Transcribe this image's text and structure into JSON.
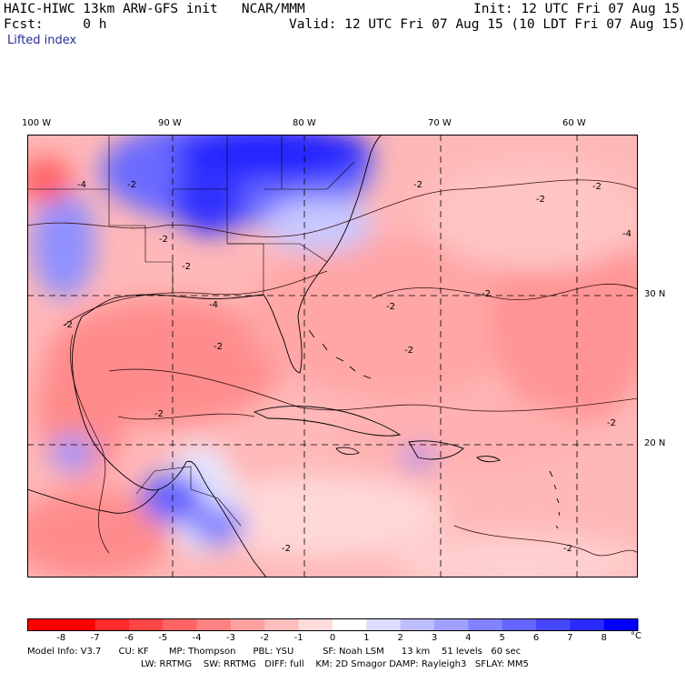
{
  "header": {
    "title": "HAIC-HIWC 13km ARW-GFS init   NCAR/MMM",
    "init": "Init: 12 UTC Fri 07 Aug 15",
    "fcst": "Fcst:     0 h",
    "valid": "Valid: 12 UTC Fri 07 Aug 15 (10 LDT Fri 07 Aug 15)",
    "field": "Lifted index"
  },
  "map": {
    "lon_labels": [
      "100 W",
      "90 W",
      "80 W",
      "70 W",
      "60 W"
    ],
    "lat_labels": [
      "30 N",
      "20 N"
    ],
    "contour_labels": [
      "-2",
      "-4"
    ]
  },
  "colorbar": {
    "ticks": [
      "-8",
      "-7",
      "-6",
      "-5",
      "-4",
      "-3",
      "-2",
      "-1",
      "0",
      "1",
      "2",
      "3",
      "4",
      "5",
      "6",
      "7",
      "8"
    ],
    "unit": "°C",
    "colors": [
      "#ff0000",
      "#ff2a2a",
      "#ff4646",
      "#ff6464",
      "#ff8282",
      "#ffa0a0",
      "#ffbebe",
      "#ffdcdc",
      "#ffffff",
      "#dcdcff",
      "#bebeff",
      "#a0a0ff",
      "#8282ff",
      "#6464ff",
      "#4646ff",
      "#2a2aff",
      "#0000ff"
    ]
  },
  "model_info": {
    "line1": "Model Info: V3.7      CU: KF       MP: Thompson      PBL: YSU          SF: Noah LSM      13 km    51 levels   60 sec",
    "line2": "LW: RRTMG    SW: RRTMG   DIFF: full    KM: 2D Smagor DAMP: Rayleigh3   SFLAY: MM5"
  }
}
